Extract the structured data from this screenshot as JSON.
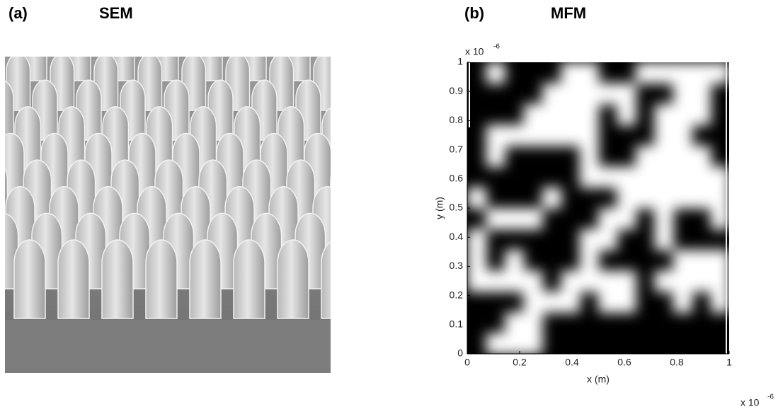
{
  "panels": [
    {
      "label": "(a)",
      "title": "SEM"
    },
    {
      "label": "(b)",
      "title": "MFM",
      "x_axis": {
        "label": "x (m)",
        "lim": [
          0,
          1
        ],
        "ticks": [
          0,
          0.2,
          0.4,
          0.6,
          0.8,
          1
        ],
        "multiplier": "x 10",
        "exponent": "-6"
      },
      "y_axis": {
        "label": "y (m)",
        "lim": [
          0,
          1
        ],
        "ticks": [
          0,
          0.1,
          0.2,
          0.3,
          0.4,
          0.5,
          0.6,
          0.7,
          0.8,
          0.9,
          1
        ],
        "multiplier": "x 10",
        "exponent": "-6"
      }
    }
  ]
}
